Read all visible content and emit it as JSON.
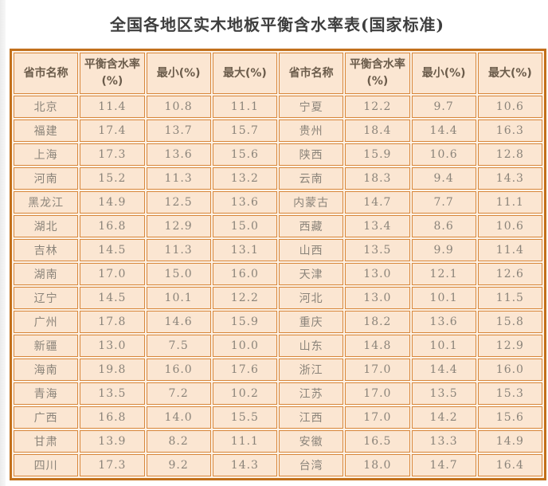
{
  "page": {
    "title": "全国各地区实木地板平衡含水率表(国家标准)"
  },
  "table": {
    "headers": [
      "省市名称",
      "平衡含水率(%)",
      "最小(%)",
      "最大(%)",
      "省市名称",
      "平衡含水率(%)",
      "最小(%)",
      "最大(%)"
    ],
    "rows": [
      [
        "北京",
        "11.4",
        "10.8",
        "11.1",
        "宁夏",
        "12.2",
        "9.7",
        "10.6"
      ],
      [
        "福建",
        "17.4",
        "13.7",
        "15.7",
        "贵州",
        "18.4",
        "14.4",
        "16.3"
      ],
      [
        "上海",
        "17.3",
        "13.6",
        "15.6",
        "陕西",
        "15.9",
        "10.6",
        "12.8"
      ],
      [
        "河南",
        "15.2",
        "11.3",
        "13.2",
        "云南",
        "18.3",
        "9.4",
        "14.3"
      ],
      [
        "黑龙江",
        "14.9",
        "12.5",
        "13.6",
        "内蒙古",
        "14.7",
        "7.7",
        "11.1"
      ],
      [
        "湖北",
        "16.8",
        "12.9",
        "15.0",
        "西藏",
        "13.4",
        "8.6",
        "10.6"
      ],
      [
        "吉林",
        "14.5",
        "11.3",
        "13.1",
        "山西",
        "13.5",
        "9.9",
        "11.4"
      ],
      [
        "湖南",
        "17.0",
        "15.0",
        "16.0",
        "天津",
        "13.0",
        "12.1",
        "12.6"
      ],
      [
        "辽宁",
        "14.5",
        "10.1",
        "12.2",
        "河北",
        "13.0",
        "10.1",
        "11.5"
      ],
      [
        "广州",
        "17.8",
        "14.6",
        "15.9",
        "重庆",
        "18.2",
        "13.6",
        "15.8"
      ],
      [
        "新疆",
        "13.0",
        "7.5",
        "10.0",
        "山东",
        "14.8",
        "10.1",
        "12.9"
      ],
      [
        "海南",
        "19.8",
        "16.0",
        "17.6",
        "浙江",
        "17.0",
        "14.4",
        "16.0"
      ],
      [
        "青海",
        "13.5",
        "7.2",
        "10.2",
        "江苏",
        "17.0",
        "13.5",
        "15.3"
      ],
      [
        "广西",
        "16.8",
        "14.0",
        "15.5",
        "江西",
        "17.0",
        "14.2",
        "15.6"
      ],
      [
        "甘肃",
        "13.9",
        "8.2",
        "11.1",
        "安徽",
        "16.5",
        "13.3",
        "14.9"
      ],
      [
        "四川",
        "17.3",
        "9.2",
        "14.3",
        "台湾",
        "18.0",
        "14.7",
        "16.4"
      ]
    ]
  },
  "colors": {
    "outer_border": "#c2701c",
    "cell_border": "#d8873b",
    "cell_bg": "#fbe6d2",
    "gap_bg": "#fdf3e8",
    "header_text": "#6b5c4b",
    "cell_text": "#8b847a",
    "title_text": "#3e3e3e",
    "page_bg": "#ffffff",
    "edge_strip": "#ebebeb"
  }
}
